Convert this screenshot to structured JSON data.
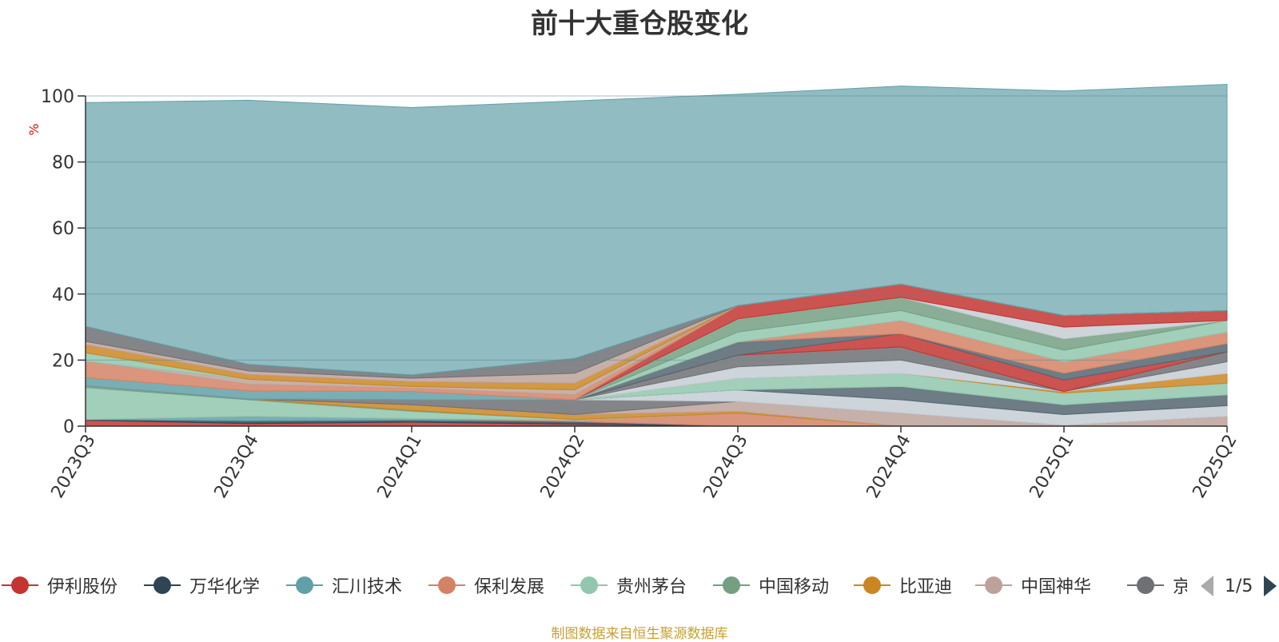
{
  "chart_data": {
    "type": "area",
    "title": "前十大重仓股变化",
    "ylabel": "%",
    "ylim": [
      0,
      100
    ],
    "yticks": [
      "0",
      "20",
      "40",
      "60",
      "80",
      "100"
    ],
    "grid": true,
    "categories": [
      "2023Q3",
      "2023Q4",
      "2024Q1",
      "2024Q2",
      "2024Q3",
      "2024Q4",
      "2025Q1",
      "2025Q2"
    ],
    "series": [
      {
        "name": "伊利股份",
        "color": "#c23531",
        "values": [
          1.8,
          0.8,
          1.2,
          0.6,
          0.0,
          0.0,
          0.0,
          0.0
        ]
      },
      {
        "name": "万华化学",
        "color": "#2f4554",
        "values": [
          0.2,
          0.8,
          0.6,
          0.8,
          0.0,
          0.0,
          0.0,
          0.0
        ]
      },
      {
        "name": "汇川技术",
        "color": "#61a0a8",
        "values": [
          0.0,
          1.4,
          0.5,
          0.0,
          0.0,
          0.0,
          0.0,
          0.0
        ]
      },
      {
        "name": "保利发展",
        "color": "#d48265",
        "values": [
          0.0,
          0.0,
          0.0,
          0.4,
          4.0,
          0.0,
          0.0,
          0.0
        ]
      },
      {
        "name": "贵州茅台",
        "color": "#91c7ae",
        "values": [
          9.7,
          5.0,
          2.2,
          0.2,
          0.0,
          0.0,
          0.0,
          0.0
        ]
      },
      {
        "name": "中国移动",
        "color": "#749f83",
        "values": [
          0.5,
          0.2,
          0.3,
          0.0,
          0.0,
          0.0,
          0.0,
          0.0
        ]
      },
      {
        "name": "比亚迪",
        "color": "#ca8622",
        "values": [
          0.0,
          0.0,
          1.7,
          1.5,
          0.5,
          0.0,
          0.0,
          0.0
        ]
      },
      {
        "name": "中国神华",
        "color": "#bda29a",
        "values": [
          0.0,
          0.0,
          0.0,
          0.0,
          3.0,
          4.0,
          0.3,
          3.0
        ]
      },
      {
        "name": "京沪高铁",
        "color": "#6e7074",
        "values": [
          0.0,
          0.0,
          1.5,
          4.5,
          0.0,
          0.0,
          0.0,
          0.0
        ]
      },
      {
        "name": "",
        "color": "#c4ccd3",
        "values": [
          0.0,
          0.0,
          0.0,
          0.0,
          3.5,
          4.0,
          3.2,
          3.2
        ]
      },
      {
        "name": "",
        "color": "#546570",
        "values": [
          0.0,
          0.0,
          0.0,
          0.0,
          0.0,
          4.0,
          3.0,
          3.3
        ]
      },
      {
        "name": "",
        "color": "#91c7ae",
        "values": [
          0.0,
          0.0,
          0.0,
          0.0,
          3.5,
          4.0,
          3.5,
          3.5
        ]
      },
      {
        "name": "",
        "color": "#ca8622",
        "values": [
          0.0,
          0.0,
          0.0,
          0.0,
          0.0,
          0.0,
          0.5,
          3.0
        ]
      },
      {
        "name": "",
        "color": "#c4ccd3",
        "values": [
          0.0,
          0.0,
          0.0,
          0.0,
          3.5,
          4.0,
          0.0,
          3.5
        ]
      },
      {
        "name": "",
        "color": "#6e7074",
        "values": [
          0.0,
          0.0,
          0.0,
          0.0,
          3.5,
          4.0,
          0.0,
          3.0
        ]
      },
      {
        "name": "",
        "color": "#c23531",
        "values": [
          0.0,
          0.0,
          0.0,
          0.0,
          0.0,
          4.0,
          3.5,
          0.0
        ]
      },
      {
        "name": "",
        "color": "#546570",
        "values": [
          0.0,
          0.0,
          0.0,
          0.0,
          4.0,
          0.0,
          2.0,
          2.5
        ]
      },
      {
        "name": "",
        "color": "#d48265",
        "values": [
          0.0,
          0.0,
          0.0,
          0.0,
          0.0,
          4.0,
          3.5,
          3.5
        ]
      },
      {
        "name": "",
        "color": "#91c7ae",
        "values": [
          0.0,
          0.0,
          0.0,
          0.0,
          3.0,
          3.0,
          3.5,
          3.5
        ]
      },
      {
        "name": "",
        "color": "#749f83",
        "values": [
          0.0,
          0.0,
          0.0,
          0.0,
          4.0,
          4.0,
          3.5,
          0.0
        ]
      },
      {
        "name": "",
        "color": "#c4ccd3",
        "values": [
          0.0,
          0.0,
          0.0,
          0.0,
          0.0,
          0.0,
          3.5,
          0.0
        ]
      },
      {
        "name": "",
        "color": "#c23531",
        "values": [
          0.0,
          0.0,
          0.0,
          0.0,
          4.0,
          4.0,
          3.5,
          3.0
        ]
      },
      {
        "name": "",
        "color": "#61a0a8",
        "values": [
          2.5,
          2.5,
          2.5,
          0.0,
          0.0,
          0.0,
          0.0,
          0.0
        ]
      },
      {
        "name": "",
        "color": "#d48265",
        "values": [
          5.0,
          2.0,
          1.0,
          1.5,
          0.0,
          0.0,
          0.0,
          0.0
        ]
      },
      {
        "name": "",
        "color": "#bda29a",
        "values": [
          0.0,
          1.5,
          0.5,
          1.5,
          0.0,
          0.0,
          0.0,
          0.0
        ]
      },
      {
        "name": "",
        "color": "#91c7ae",
        "values": [
          2.5,
          0.0,
          0.0,
          0.0,
          0.0,
          0.0,
          0.0,
          0.0
        ]
      },
      {
        "name": "",
        "color": "#ca8622",
        "values": [
          2.5,
          1.5,
          1.5,
          2.0,
          0.0,
          0.0,
          0.0,
          0.0
        ]
      },
      {
        "name": "",
        "color": "#bda29a",
        "values": [
          1.0,
          1.0,
          1.0,
          3.0,
          0.0,
          0.0,
          0.0,
          0.0
        ]
      },
      {
        "name": "",
        "color": "#6e7074",
        "values": [
          4.5,
          2.0,
          1.0,
          4.5,
          0.0,
          0.0,
          0.0,
          0.0
        ]
      },
      {
        "name": "",
        "color": "#61a0a8",
        "values": [
          67.8,
          80.0,
          81.0,
          78.0,
          64.0,
          60.0,
          68.0,
          68.5
        ]
      }
    ],
    "legend_position": "bottom"
  },
  "legend": {
    "items": [
      {
        "label": "伊利股份",
        "color": "#c23531"
      },
      {
        "label": "万华化学",
        "color": "#2f4554"
      },
      {
        "label": "汇川技术",
        "color": "#61a0a8"
      },
      {
        "label": "保利发展",
        "color": "#d48265"
      },
      {
        "label": "贵州茅台",
        "color": "#91c7ae"
      },
      {
        "label": "中国移动",
        "color": "#749f83"
      },
      {
        "label": "比亚迪",
        "color": "#ca8622"
      },
      {
        "label": "中国神华",
        "color": "#bda29a"
      },
      {
        "label": "京沪高铁",
        "color": "#6e7074"
      }
    ],
    "page": "1/5",
    "prev_icon": "triangle-left-icon",
    "next_icon": "triangle-right-icon"
  },
  "footer": {
    "source": "制图数据来自恒生聚源数据库"
  }
}
